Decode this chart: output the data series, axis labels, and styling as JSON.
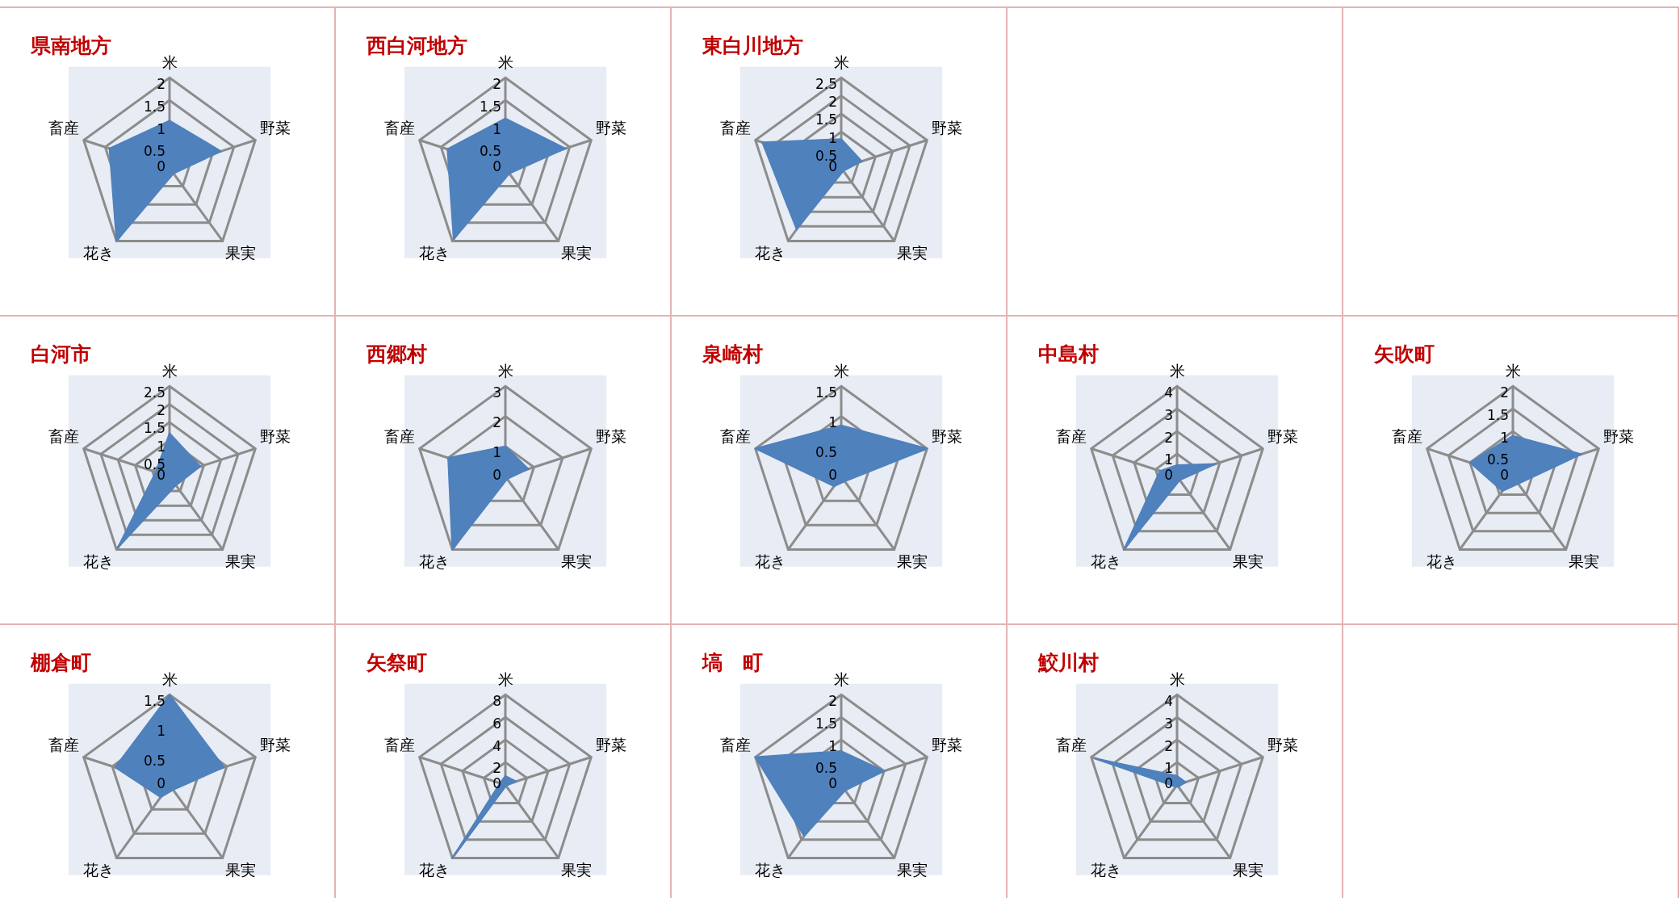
{
  "chart_data": [
    {
      "type": "radar",
      "title": "県南地方",
      "categories": [
        "米",
        "野菜",
        "果実",
        "花き",
        "畜産"
      ],
      "series": [
        {
          "color": "#4f81bd",
          "values": [
            1.05,
            1.2,
            0.15,
            2.0,
            1.4
          ]
        }
      ],
      "ylim": [
        0,
        2
      ],
      "yticks": [
        0,
        0.5,
        1,
        1.5,
        2
      ],
      "grid": true,
      "marker": "none"
    },
    {
      "type": "radar",
      "title": "西白河地方",
      "categories": [
        "米",
        "野菜",
        "果実",
        "花き",
        "畜産"
      ],
      "series": [
        {
          "color": "#4f81bd",
          "values": [
            1.1,
            1.4,
            0.15,
            1.95,
            1.35
          ]
        }
      ],
      "ylim": [
        0,
        2
      ],
      "yticks": [
        0,
        0.5,
        1,
        1.5,
        2
      ],
      "grid": true,
      "marker": "none"
    },
    {
      "type": "radar",
      "title": "東白川地方",
      "categories": [
        "米",
        "野菜",
        "果実",
        "花き",
        "畜産"
      ],
      "series": [
        {
          "color": "#4f81bd",
          "values": [
            0.8,
            0.6,
            0.1,
            2.1,
            2.3
          ]
        }
      ],
      "ylim": [
        0,
        2.5
      ],
      "yticks": [
        0,
        0.5,
        1,
        1.5,
        2,
        2.5
      ],
      "grid": true,
      "marker": "none"
    },
    {
      "type": "radar",
      "title": "白河市",
      "categories": [
        "米",
        "野菜",
        "果実",
        "花き",
        "畜産"
      ],
      "series": [
        {
          "color": "#4f81bd",
          "values": [
            1.2,
            0.9,
            0.3,
            2.45,
            0.4
          ]
        }
      ],
      "ylim": [
        0,
        2.5
      ],
      "yticks": [
        0,
        0.5,
        1,
        1.5,
        2,
        2.5
      ],
      "grid": true,
      "marker": "none"
    },
    {
      "type": "radar",
      "title": "西郷村",
      "categories": [
        "米",
        "野菜",
        "果実",
        "花き",
        "畜産"
      ],
      "series": [
        {
          "color": "#4f81bd",
          "values": [
            1.0,
            0.8,
            0.1,
            3.0,
            2.0
          ]
        }
      ],
      "ylim": [
        0,
        3
      ],
      "yticks": [
        0,
        1,
        2,
        3
      ],
      "grid": true,
      "marker": "none"
    },
    {
      "type": "radar",
      "title": "泉崎村",
      "categories": [
        "米",
        "野菜",
        "果実",
        "花き",
        "畜産"
      ],
      "series": [
        {
          "color": "#4f81bd",
          "values": [
            0.85,
            1.5,
            0.1,
            0.2,
            1.5
          ]
        }
      ],
      "ylim": [
        0,
        1.5
      ],
      "yticks": [
        0,
        0.5,
        1,
        1.5
      ],
      "grid": true,
      "marker": "none"
    },
    {
      "type": "radar",
      "title": "中島村",
      "categories": [
        "米",
        "野菜",
        "果実",
        "花き",
        "畜産"
      ],
      "series": [
        {
          "color": "#4f81bd",
          "values": [
            0.5,
            1.8,
            0.2,
            4.0,
            0.8
          ]
        }
      ],
      "ylim": [
        0,
        4
      ],
      "yticks": [
        0,
        1,
        2,
        3,
        4
      ],
      "grid": true,
      "marker": "none"
    },
    {
      "type": "radar",
      "title": "矢吹町",
      "categories": [
        "米",
        "野菜",
        "果実",
        "花き",
        "畜産"
      ],
      "series": [
        {
          "color": "#4f81bd",
          "values": [
            0.9,
            1.6,
            0.2,
            0.4,
            1.0
          ]
        }
      ],
      "ylim": [
        0,
        2
      ],
      "yticks": [
        0,
        0.5,
        1,
        1.5,
        2
      ],
      "grid": true,
      "marker": "none"
    },
    {
      "type": "radar",
      "title": "棚倉町",
      "categories": [
        "米",
        "野菜",
        "果実",
        "花き",
        "畜産"
      ],
      "series": [
        {
          "color": "#4f81bd",
          "values": [
            1.5,
            0.95,
            0.1,
            0.25,
            0.95
          ]
        }
      ],
      "ylim": [
        0,
        1.5
      ],
      "yticks": [
        0,
        0.5,
        1,
        1.5
      ],
      "grid": true,
      "marker": "none"
    },
    {
      "type": "radar",
      "title": "矢祭町",
      "categories": [
        "米",
        "野菜",
        "果実",
        "花き",
        "畜産"
      ],
      "series": [
        {
          "color": "#4f81bd",
          "values": [
            0.8,
            1.0,
            0.1,
            8.0,
            0.5
          ]
        }
      ],
      "ylim": [
        0,
        8
      ],
      "yticks": [
        0,
        2,
        4,
        6,
        8
      ],
      "grid": true,
      "marker": "none"
    },
    {
      "type": "radar",
      "title": "塙　町",
      "categories": [
        "米",
        "野菜",
        "果実",
        "花き",
        "畜産"
      ],
      "series": [
        {
          "color": "#4f81bd",
          "values": [
            0.75,
            1.0,
            0.15,
            1.4,
            2.0
          ]
        }
      ],
      "ylim": [
        0,
        2
      ],
      "yticks": [
        0,
        0.5,
        1,
        1.5,
        2
      ],
      "grid": true,
      "marker": "none"
    },
    {
      "type": "radar",
      "title": "鮫川村",
      "categories": [
        "米",
        "野菜",
        "果実",
        "花き",
        "畜産"
      ],
      "series": [
        {
          "color": "#4f81bd",
          "values": [
            0.4,
            0.4,
            0.1,
            0.1,
            3.8
          ]
        }
      ],
      "ylim": [
        0,
        4
      ],
      "yticks": [
        0,
        1,
        2,
        3,
        4
      ],
      "grid": true,
      "marker": "none"
    }
  ]
}
